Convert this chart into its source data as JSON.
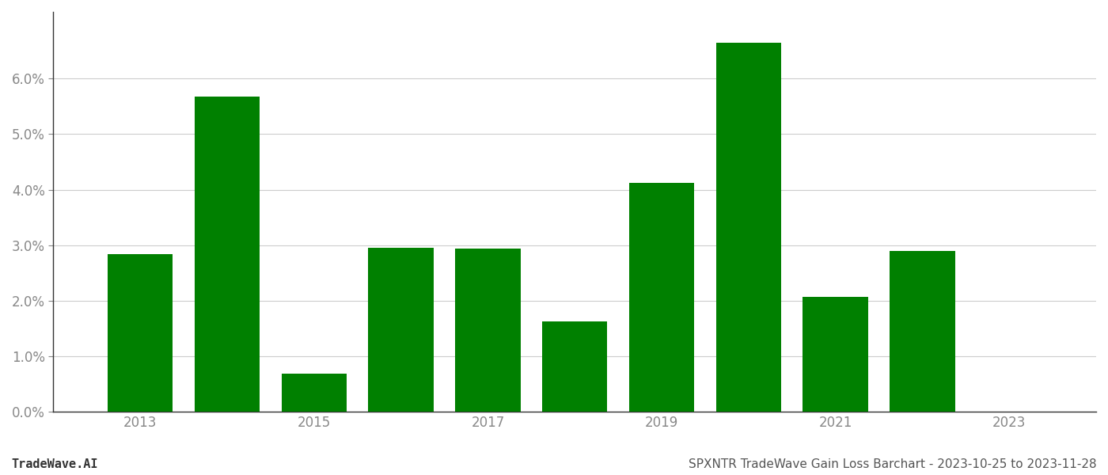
{
  "years": [
    2013,
    2014,
    2015,
    2016,
    2017,
    2018,
    2019,
    2020,
    2021,
    2022,
    2023
  ],
  "values": [
    0.0284,
    0.0567,
    0.0068,
    0.0295,
    0.0294,
    0.0162,
    0.0412,
    0.0665,
    0.0207,
    0.0289,
    0.0
  ],
  "bar_color": "#008000",
  "background_color": "#ffffff",
  "grid_color": "#cccccc",
  "axis_color": "#333333",
  "title": "SPXNTR TradeWave Gain Loss Barchart - 2023-10-25 to 2023-11-28",
  "watermark": "TradeWave.AI",
  "ylim": [
    0.0,
    0.072
  ],
  "yticks": [
    0.0,
    0.01,
    0.02,
    0.03,
    0.04,
    0.05,
    0.06
  ],
  "title_fontsize": 11,
  "watermark_fontsize": 11,
  "tick_fontsize": 12,
  "tick_color": "#888888",
  "bar_width": 0.75
}
